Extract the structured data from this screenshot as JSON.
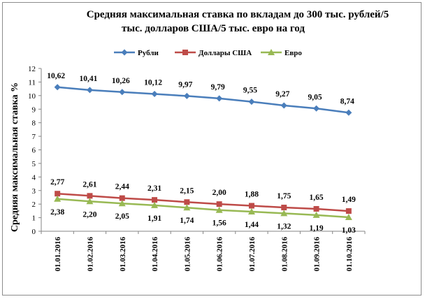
{
  "chart_data": {
    "type": "line",
    "title_lines": [
      "Средняя максимальная ставка по вкладам до 300 тыс. рублей/5",
      "тыс. долларов США/5  тыс. евро на год"
    ],
    "ylabel": "Средняя максимальная ставка %",
    "xlabel": "",
    "ylim": [
      0,
      12
    ],
    "yticks": [
      "0",
      "1",
      "2",
      "3",
      "4",
      "5",
      "6",
      "7",
      "8",
      "9",
      "10",
      "11",
      "12"
    ],
    "categories": [
      "01.01.2016",
      "01.02.2016",
      "01.03.2016",
      "01.04.2016",
      "01.05.2016",
      "01.06.2016",
      "01.07.2016",
      "01.08.2016",
      "01.09.2016",
      "01.10.2016"
    ],
    "legend_position": "top",
    "grid": false,
    "series": [
      {
        "name": "Рубли",
        "color": "#4a7ebb",
        "marker": "diamond",
        "values": [
          10.62,
          10.41,
          10.26,
          10.12,
          9.97,
          9.79,
          9.55,
          9.27,
          9.05,
          8.74
        ],
        "labels": [
          "10,62",
          "10,41",
          "10,26",
          "10,12",
          "9,97",
          "9,79",
          "9,55",
          "9,27",
          "9,05",
          "8,74"
        ]
      },
      {
        "name": "Доллары США",
        "color": "#be4b48",
        "marker": "square",
        "values": [
          2.77,
          2.61,
          2.44,
          2.31,
          2.15,
          2.0,
          1.88,
          1.75,
          1.65,
          1.49
        ],
        "labels": [
          "2,77",
          "2,61",
          "2,44",
          "2,31",
          "2,15",
          "2,00",
          "1,88",
          "1,75",
          "1,65",
          "1,49"
        ]
      },
      {
        "name": "Евро",
        "color": "#98b954",
        "marker": "triangle",
        "values": [
          2.38,
          2.2,
          2.05,
          1.91,
          1.74,
          1.56,
          1.44,
          1.32,
          1.19,
          1.03
        ],
        "labels": [
          "2,38",
          "2,20",
          "2,05",
          "1,91",
          "1,74",
          "1,56",
          "1,44",
          "1,32",
          "1,19",
          "1,03"
        ]
      }
    ]
  }
}
